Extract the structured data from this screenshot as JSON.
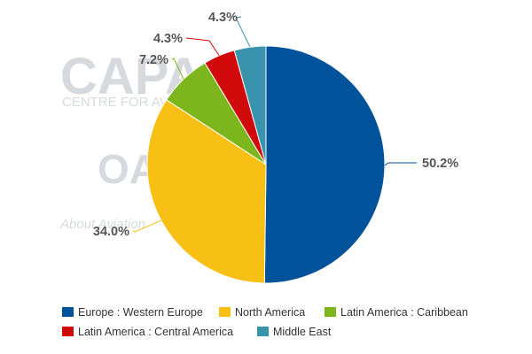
{
  "watermark": {
    "logo_text": "CAPA",
    "sub_text": "CENTRE FOR AVIATION",
    "logo2_text": "OAG",
    "tagline": "About Aviation"
  },
  "chart_data": {
    "type": "pie",
    "title": "",
    "slices": [
      {
        "label": "Europe : Western Europe",
        "value": 50.2,
        "label_text": "50.2%",
        "color": "#00529b"
      },
      {
        "label": "North America",
        "value": 34.0,
        "label_text": "34.0%",
        "color": "#f8bf14"
      },
      {
        "label": "Latin America : Caribbean",
        "value": 7.2,
        "label_text": "7.2%",
        "color": "#7db61c"
      },
      {
        "label": "Latin America : Central America",
        "value": 4.3,
        "label_text": "4.3%",
        "color": "#d00a0a"
      },
      {
        "label": "Middle East",
        "value": 4.3,
        "label_text": "4.3%",
        "color": "#3a93ad"
      }
    ],
    "start_angle": "12 o'clock",
    "direction": "clockwise",
    "legend_position": "bottom"
  }
}
